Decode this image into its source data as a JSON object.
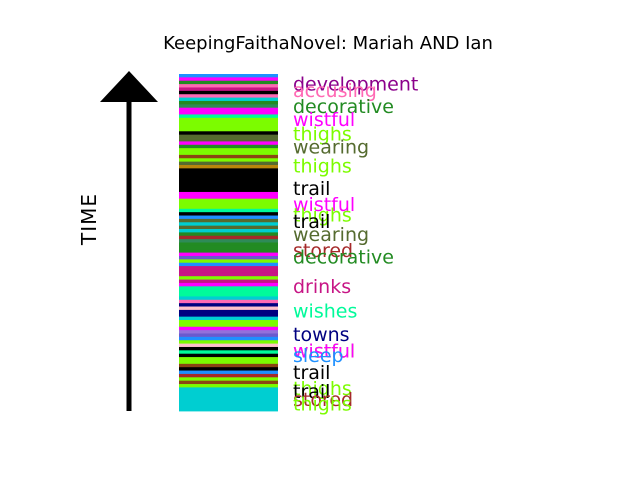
{
  "chart_data": {
    "type": "bar",
    "title": "KeepingFaithaNovel: Mariah AND Ian",
    "ylabel": "TIME",
    "y_direction": "up",
    "stripes": [
      {
        "pos": 0.0,
        "color": "#1e90ff"
      },
      {
        "pos": 0.01,
        "color": "#ff00ff"
      },
      {
        "pos": 0.02,
        "color": "#228b22"
      },
      {
        "pos": 0.03,
        "color": "#ff69b4"
      },
      {
        "pos": 0.04,
        "color": "#c71585"
      },
      {
        "pos": 0.05,
        "color": "#000000"
      },
      {
        "pos": 0.06,
        "color": "#ff69b4"
      },
      {
        "pos": 0.07,
        "color": "#00ced1"
      },
      {
        "pos": 0.08,
        "color": "#228b22"
      },
      {
        "pos": 0.09,
        "color": "#2e8b57"
      },
      {
        "pos": 0.1,
        "color": "#ff00ff"
      },
      {
        "pos": 0.11,
        "color": "#ff00ff"
      },
      {
        "pos": 0.12,
        "color": "#00fa9a"
      },
      {
        "pos": 0.13,
        "color": "#7cfc00"
      },
      {
        "pos": 0.14,
        "color": "#7cfc00"
      },
      {
        "pos": 0.15,
        "color": "#7cfc00"
      },
      {
        "pos": 0.16,
        "color": "#7cfc00"
      },
      {
        "pos": 0.17,
        "color": "#000000"
      },
      {
        "pos": 0.18,
        "color": "#556b2f"
      },
      {
        "pos": 0.19,
        "color": "#556b2f"
      },
      {
        "pos": 0.2,
        "color": "#ff00ff"
      },
      {
        "pos": 0.21,
        "color": "#228b22"
      },
      {
        "pos": 0.22,
        "color": "#7cfc00"
      },
      {
        "pos": 0.23,
        "color": "#7cfc00"
      },
      {
        "pos": 0.24,
        "color": "#8b4513"
      },
      {
        "pos": 0.25,
        "color": "#7cfc00"
      },
      {
        "pos": 0.26,
        "color": "#556b2f"
      },
      {
        "pos": 0.27,
        "color": "#b8860b"
      },
      {
        "pos": 0.28,
        "color": "#000000"
      },
      {
        "pos": 0.29,
        "color": "#000000"
      },
      {
        "pos": 0.3,
        "color": "#000000"
      },
      {
        "pos": 0.31,
        "color": "#000000"
      },
      {
        "pos": 0.32,
        "color": "#000000"
      },
      {
        "pos": 0.33,
        "color": "#000000"
      },
      {
        "pos": 0.34,
        "color": "#000000"
      },
      {
        "pos": 0.35,
        "color": "#ff00ff"
      },
      {
        "pos": 0.36,
        "color": "#ff00ff"
      },
      {
        "pos": 0.37,
        "color": "#7cfc00"
      },
      {
        "pos": 0.38,
        "color": "#7cfc00"
      },
      {
        "pos": 0.39,
        "color": "#7cfc00"
      },
      {
        "pos": 0.4,
        "color": "#00fa9a"
      },
      {
        "pos": 0.41,
        "color": "#000000"
      },
      {
        "pos": 0.42,
        "color": "#1e90ff"
      },
      {
        "pos": 0.43,
        "color": "#556b2f"
      },
      {
        "pos": 0.44,
        "color": "#00ced1"
      },
      {
        "pos": 0.45,
        "color": "#556b2f"
      },
      {
        "pos": 0.46,
        "color": "#00ced1"
      },
      {
        "pos": 0.47,
        "color": "#228b22"
      },
      {
        "pos": 0.48,
        "color": "#a52a2a"
      },
      {
        "pos": 0.49,
        "color": "#2e8b57"
      },
      {
        "pos": 0.5,
        "color": "#228b22"
      },
      {
        "pos": 0.51,
        "color": "#228b22"
      },
      {
        "pos": 0.52,
        "color": "#228b22"
      },
      {
        "pos": 0.53,
        "color": "#ff00ff"
      },
      {
        "pos": 0.54,
        "color": "#6a5acd"
      },
      {
        "pos": 0.55,
        "color": "#7cfc00"
      },
      {
        "pos": 0.56,
        "color": "#1e90ff"
      },
      {
        "pos": 0.57,
        "color": "#c71585"
      },
      {
        "pos": 0.58,
        "color": "#c71585"
      },
      {
        "pos": 0.59,
        "color": "#c71585"
      },
      {
        "pos": 0.6,
        "color": "#7cfc00"
      },
      {
        "pos": 0.61,
        "color": "#c71585"
      },
      {
        "pos": 0.62,
        "color": "#ff00ff"
      },
      {
        "pos": 0.63,
        "color": "#00fa9a"
      },
      {
        "pos": 0.64,
        "color": "#00fa9a"
      },
      {
        "pos": 0.65,
        "color": "#00fa9a"
      },
      {
        "pos": 0.66,
        "color": "#00ced1"
      },
      {
        "pos": 0.67,
        "color": "#ff69b4"
      },
      {
        "pos": 0.68,
        "color": "#000080"
      },
      {
        "pos": 0.69,
        "color": "#ffc0cb"
      },
      {
        "pos": 0.7,
        "color": "#000080"
      },
      {
        "pos": 0.71,
        "color": "#000080"
      },
      {
        "pos": 0.72,
        "color": "#00ced1"
      },
      {
        "pos": 0.73,
        "color": "#7cfc00"
      },
      {
        "pos": 0.74,
        "color": "#7cfc00"
      },
      {
        "pos": 0.75,
        "color": "#ff00ff"
      },
      {
        "pos": 0.76,
        "color": "#9370db"
      },
      {
        "pos": 0.77,
        "color": "#6a5acd"
      },
      {
        "pos": 0.78,
        "color": "#1e90ff"
      },
      {
        "pos": 0.79,
        "color": "#7cfc00"
      },
      {
        "pos": 0.8,
        "color": "#ffc0cb"
      },
      {
        "pos": 0.81,
        "color": "#000000"
      },
      {
        "pos": 0.82,
        "color": "#00fa9a"
      },
      {
        "pos": 0.83,
        "color": "#000000"
      },
      {
        "pos": 0.84,
        "color": "#7cfc00"
      },
      {
        "pos": 0.85,
        "color": "#7cfc00"
      },
      {
        "pos": 0.86,
        "color": "#8b4513"
      },
      {
        "pos": 0.87,
        "color": "#000000"
      },
      {
        "pos": 0.88,
        "color": "#1e90ff"
      },
      {
        "pos": 0.89,
        "color": "#a52a2a"
      },
      {
        "pos": 0.9,
        "color": "#7cfc00"
      },
      {
        "pos": 0.91,
        "color": "#8b4513"
      },
      {
        "pos": 0.92,
        "color": "#7cfc00"
      },
      {
        "pos": 0.93,
        "color": "#00ced1"
      },
      {
        "pos": 0.94,
        "color": "#00ced1"
      }
    ],
    "labels": [
      {
        "text": "development",
        "pos": 0.0,
        "color": "#8b008b"
      },
      {
        "text": "accusing",
        "pos": 0.02,
        "color": "#ff69b4"
      },
      {
        "text": "decorative",
        "pos": 0.067,
        "color": "#228b22"
      },
      {
        "text": "wistful",
        "pos": 0.106,
        "color": "#ff00ff"
      },
      {
        "text": "thighs",
        "pos": 0.148,
        "color": "#7cfc00"
      },
      {
        "text": "wearing",
        "pos": 0.187,
        "color": "#556b2f"
      },
      {
        "text": "thighs",
        "pos": 0.243,
        "color": "#7cfc00"
      },
      {
        "text": "trail",
        "pos": 0.31,
        "color": "#000000"
      },
      {
        "text": "wistful",
        "pos": 0.358,
        "color": "#ff00ff"
      },
      {
        "text": "thighs",
        "pos": 0.388,
        "color": "#7cfc00"
      },
      {
        "text": "trail",
        "pos": 0.408,
        "color": "#000000"
      },
      {
        "text": "wearing",
        "pos": 0.447,
        "color": "#556b2f"
      },
      {
        "text": "stored",
        "pos": 0.494,
        "color": "#a52a2a"
      },
      {
        "text": "decorative",
        "pos": 0.514,
        "color": "#228b22"
      },
      {
        "text": "drinks",
        "pos": 0.601,
        "color": "#c71585"
      },
      {
        "text": "wishes",
        "pos": 0.673,
        "color": "#00fa9a"
      },
      {
        "text": "towns",
        "pos": 0.743,
        "color": "#000080"
      },
      {
        "text": "wistful",
        "pos": 0.793,
        "color": "#7cfc00"
      },
      {
        "text": "wistful",
        "pos": 0.793,
        "color": "#ff00ff"
      },
      {
        "text": "sleep",
        "pos": 0.806,
        "color": "#1e90ff"
      },
      {
        "text": "trail",
        "pos": 0.856,
        "color": "#000000"
      },
      {
        "text": "thighs",
        "pos": 0.903,
        "color": "#7cfc00"
      },
      {
        "text": "trail",
        "pos": 0.913,
        "color": "#000000"
      },
      {
        "text": "stored",
        "pos": 0.936,
        "color": "#a52a2a"
      },
      {
        "text": "thighs",
        "pos": 0.95,
        "color": "#7cfc00"
      }
    ]
  }
}
